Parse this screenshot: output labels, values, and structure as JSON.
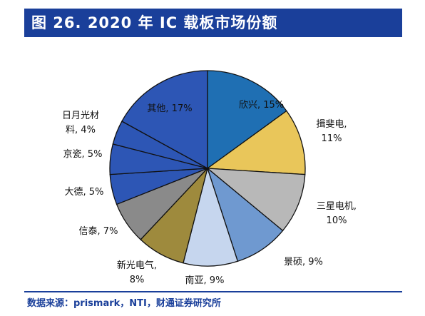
{
  "title": "图 26. 2020 年 IC 载板市场份额",
  "source": "数据来源：prismark，NTI，财通证券研究所",
  "chart_data": {
    "type": "pie",
    "unit": "%",
    "slices": [
      {
        "label": "欣兴",
        "value": 15,
        "color": "#1f6fb3"
      },
      {
        "label": "揖斐电",
        "value": 11,
        "color": "#e9c65a"
      },
      {
        "label": "三星电机",
        "value": 10,
        "color": "#b8b8b8"
      },
      {
        "label": "景硕",
        "value": 9,
        "color": "#6f99d0"
      },
      {
        "label": "南亚",
        "value": 9,
        "color": "#c6d6ee"
      },
      {
        "label": "新光电气",
        "value": 8,
        "color": "#9e8a3d"
      },
      {
        "label": "信泰",
        "value": 7,
        "color": "#8a8a8a"
      },
      {
        "label": "大德",
        "value": 5,
        "color": "#2d56b5"
      },
      {
        "label": "京瓷",
        "value": 5,
        "color": "#2d56b5"
      },
      {
        "label": "日月光材料",
        "value": 4,
        "color": "#2d56b5"
      },
      {
        "label": "其他",
        "value": 17,
        "color": "#2d56b5"
      }
    ]
  }
}
